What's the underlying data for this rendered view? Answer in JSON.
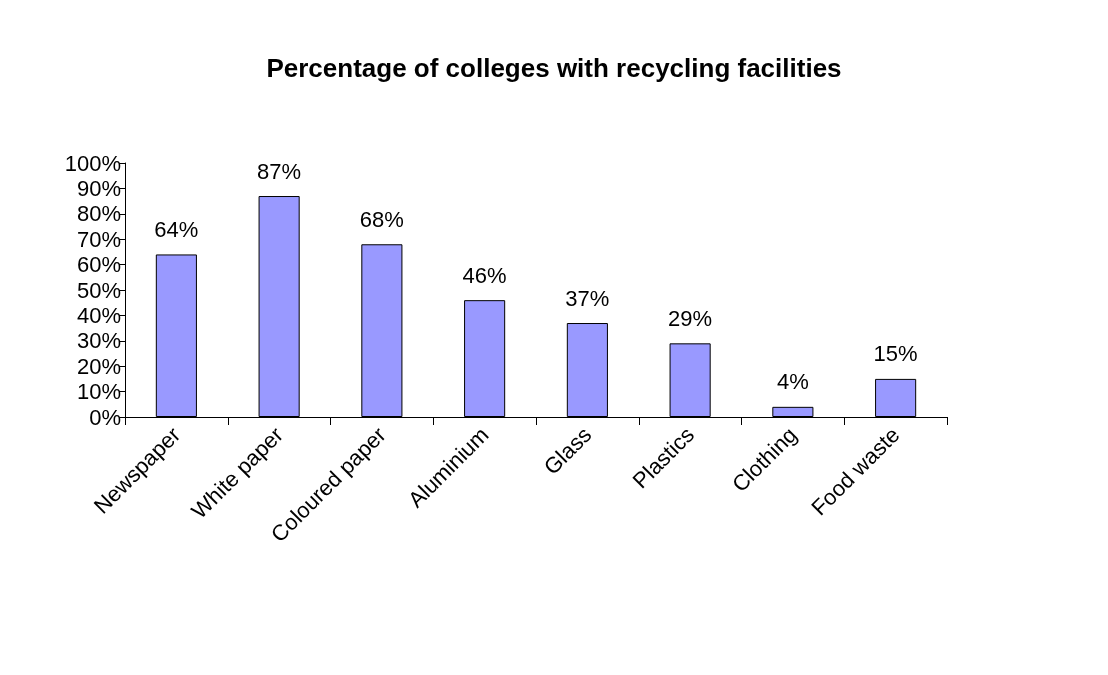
{
  "chart_data": {
    "type": "bar",
    "title": "Percentage of colleges with recycling facilities",
    "categories": [
      "Newspaper",
      "White paper",
      "Coloured paper",
      "Aluminium",
      "Glass",
      "Plastics",
      "Clothing",
      "Food waste"
    ],
    "values": [
      64,
      87,
      68,
      46,
      37,
      29,
      4,
      15
    ],
    "value_labels": [
      "64%",
      "87%",
      "68%",
      "46%",
      "37%",
      "29%",
      "4%",
      "15%"
    ],
    "color": "#9999ff",
    "ylim": [
      0,
      100
    ],
    "yticks": [
      {
        "value": 0,
        "label": "0%"
      },
      {
        "value": 10,
        "label": "10%"
      },
      {
        "value": 20,
        "label": "20%"
      },
      {
        "value": 30,
        "label": "30%"
      },
      {
        "value": 40,
        "label": "40%"
      },
      {
        "value": 50,
        "label": "50%"
      },
      {
        "value": 60,
        "label": "60%"
      },
      {
        "value": 70,
        "label": "70%"
      },
      {
        "value": 80,
        "label": "80%"
      },
      {
        "value": 90,
        "label": "90%"
      },
      {
        "value": 100,
        "label": "100%"
      }
    ],
    "grid": false
  }
}
